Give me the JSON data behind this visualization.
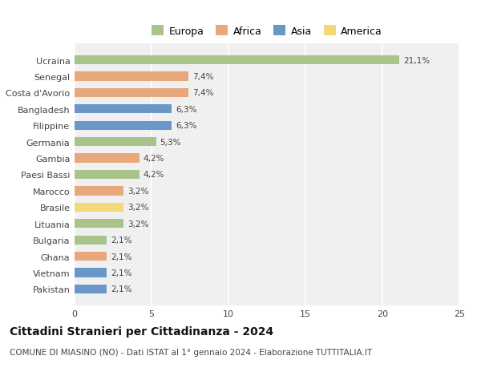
{
  "countries": [
    "Pakistan",
    "Vietnam",
    "Ghana",
    "Bulgaria",
    "Lituania",
    "Brasile",
    "Marocco",
    "Paesi Bassi",
    "Gambia",
    "Germania",
    "Filippine",
    "Bangladesh",
    "Costa d'Avorio",
    "Senegal",
    "Ucraina"
  ],
  "values": [
    2.1,
    2.1,
    2.1,
    2.1,
    3.2,
    3.2,
    3.2,
    4.2,
    4.2,
    5.3,
    6.3,
    6.3,
    7.4,
    7.4,
    21.1
  ],
  "labels": [
    "2,1%",
    "2,1%",
    "2,1%",
    "2,1%",
    "3,2%",
    "3,2%",
    "3,2%",
    "4,2%",
    "4,2%",
    "5,3%",
    "6,3%",
    "6,3%",
    "7,4%",
    "7,4%",
    "21,1%"
  ],
  "colors": [
    "#6b96c8",
    "#6b96c8",
    "#e9a87c",
    "#a8c48a",
    "#a8c48a",
    "#f5d87a",
    "#e9a87c",
    "#a8c48a",
    "#e9a87c",
    "#a8c48a",
    "#6b96c8",
    "#6b96c8",
    "#e9a87c",
    "#e9a87c",
    "#a8c48a"
  ],
  "legend_labels": [
    "Europa",
    "Africa",
    "Asia",
    "America"
  ],
  "legend_colors": [
    "#a8c48a",
    "#e9a87c",
    "#6b96c8",
    "#f5d87a"
  ],
  "title": "Cittadini Stranieri per Cittadinanza - 2024",
  "subtitle": "COMUNE DI MIASINO (NO) - Dati ISTAT al 1° gennaio 2024 - Elaborazione TUTTITALIA.IT",
  "xlim": [
    0,
    25
  ],
  "xticks": [
    0,
    5,
    10,
    15,
    20,
    25
  ],
  "background_color": "#ffffff",
  "bar_height": 0.55
}
